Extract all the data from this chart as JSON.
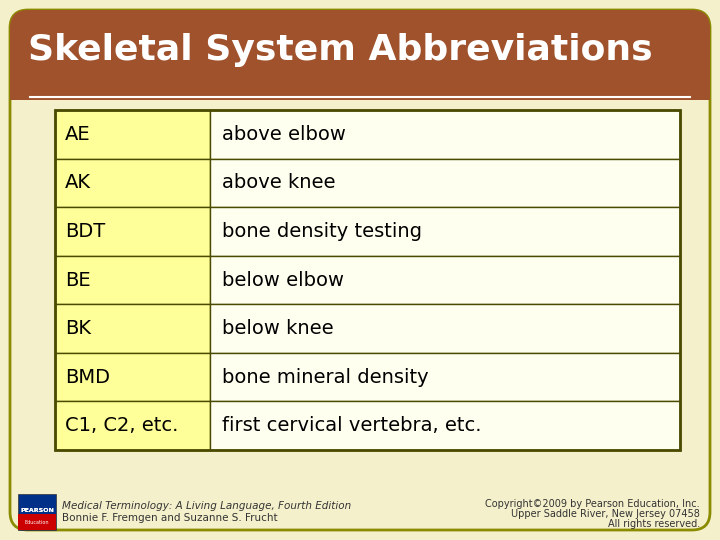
{
  "title": "Skeletal System Abbreviations",
  "title_bg": "#A0522D",
  "title_color": "#FFFFFF",
  "slide_bg": "#F5F0CC",
  "table_border_color": "#4A4A00",
  "abbreviations": [
    "AE",
    "AK",
    "BDT",
    "BE",
    "BK",
    "BMD",
    "C1, C2, etc."
  ],
  "definitions": [
    "above elbow",
    "above knee",
    "bone density testing",
    "below elbow",
    "below knee",
    "bone mineral density",
    "first cervical vertebra, etc."
  ],
  "abbrev_bg": "#FFFF99",
  "def_bg": "#FFFFF0",
  "row_text_color": "#000000",
  "footer_left_line1": "Medical Terminology: A Living Language, Fourth Edition",
  "footer_left_line2": "Bonnie F. Fremgen and Suzanne S. Frucht",
  "footer_right_line1": "Copyright©2009 by Pearson Education, Inc.",
  "footer_right_line2": "Upper Saddle River, New Jersey 07458",
  "footer_right_line3": "All rights reserved.",
  "footer_color": "#333333"
}
